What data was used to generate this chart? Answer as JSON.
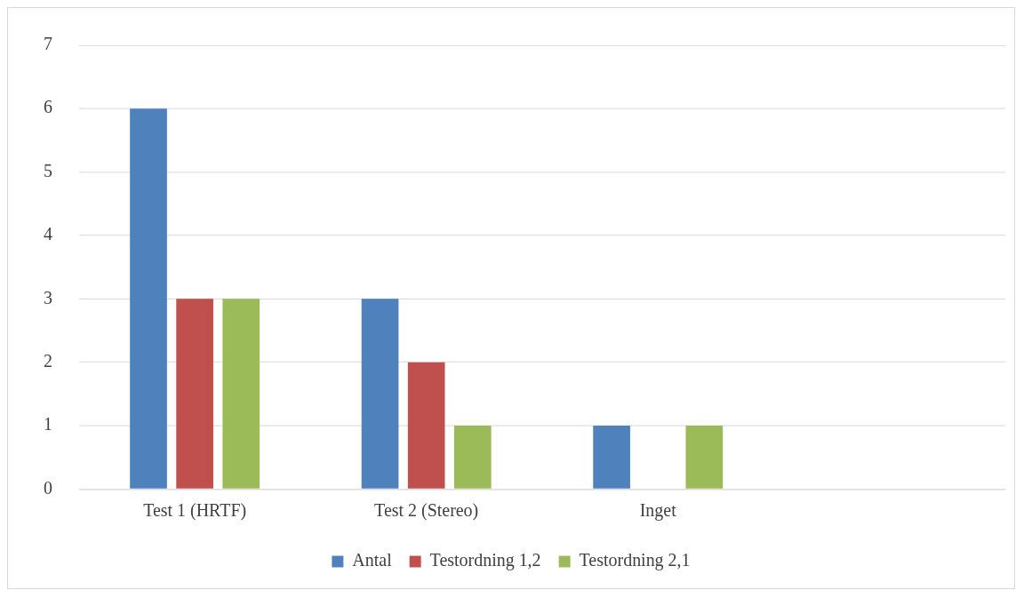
{
  "chart_data": {
    "type": "bar",
    "categories": [
      "Test 1 (HRTF)",
      "Test 2 (Stereo)",
      "Inget",
      null
    ],
    "series": [
      {
        "name": "Antal",
        "color": "#4f81bd",
        "values": [
          6,
          3,
          1,
          null
        ]
      },
      {
        "name": "Testordning 1,2",
        "color": "#c0504d",
        "values": [
          3,
          2,
          0,
          null
        ]
      },
      {
        "name": "Testordning 2,1",
        "color": "#9bbb59",
        "values": [
          3,
          1,
          1,
          null
        ]
      }
    ],
    "ylim": [
      0,
      7
    ],
    "yticks": [
      0,
      1,
      2,
      3,
      4,
      5,
      6,
      7
    ],
    "grid": "y",
    "legend": "bottom"
  }
}
